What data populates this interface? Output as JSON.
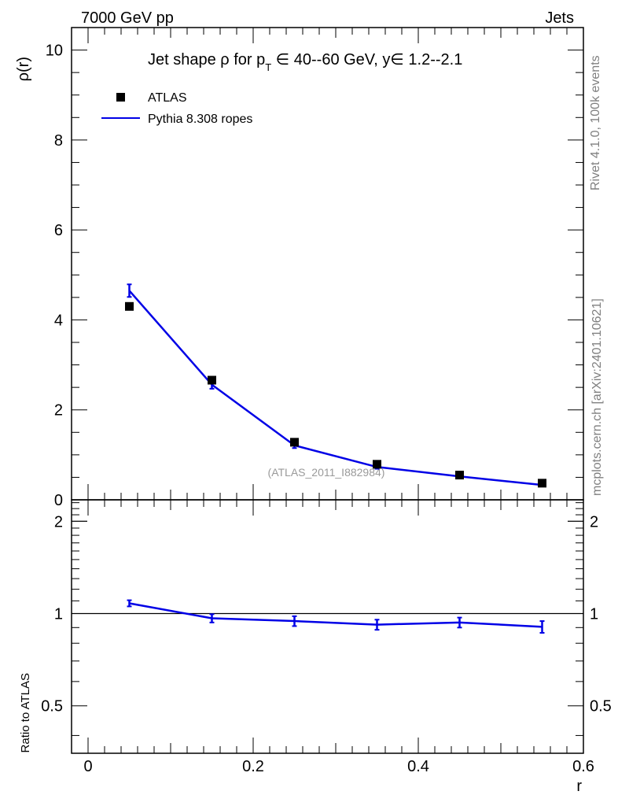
{
  "header": {
    "energy_label": "7000 GeV pp",
    "category_label": "Jets"
  },
  "side_labels": {
    "rivet_info": "Rivet 4.1.0,  100k events",
    "mcplots_info": "mcplots.cern.ch [arXiv:2401.10621]"
  },
  "watermark": "(ATLAS_2011_I882984)",
  "chart_data": [
    {
      "type": "scatter",
      "panel": "main",
      "title_parts": {
        "prefix": "Jet shape ",
        "rho": "ρ",
        "for": " for p",
        "sub": "T",
        "in1": " ∈ 40--60 GeV, y",
        "in2": "∈ 1.2--2.1"
      },
      "ylabel": "ρ(r)",
      "xlabel": "",
      "xlim": [
        -0.02,
        0.6
      ],
      "ylim": [
        0,
        10.5
      ],
      "yticks": [
        0,
        2,
        4,
        6,
        8,
        10
      ],
      "ytick_labels": [
        "0",
        "2",
        "4",
        "6",
        "8",
        "10"
      ],
      "legend_position": "top-left",
      "legend": {
        "data_label": "ATLAS",
        "mc_label": "Pythia 8.308 ropes"
      },
      "series": [
        {
          "name": "ATLAS",
          "kind": "markers",
          "color": "#000000",
          "x": [
            0.05,
            0.15,
            0.25,
            0.35,
            0.45,
            0.55
          ],
          "values": [
            4.3,
            2.66,
            1.28,
            0.79,
            0.55,
            0.37
          ]
        },
        {
          "name": "Pythia 8.308 ropes",
          "kind": "line",
          "color": "#0000e6",
          "x": [
            0.05,
            0.15,
            0.25,
            0.35,
            0.45,
            0.55
          ],
          "values": [
            4.65,
            2.56,
            1.21,
            0.73,
            0.52,
            0.33
          ],
          "errors": [
            0.14,
            0.09,
            0.06,
            0.04,
            0.03,
            0.02
          ]
        }
      ]
    },
    {
      "type": "line",
      "panel": "ratio",
      "ylabel": "Ratio to ATLAS",
      "xlabel": "r",
      "xlim": [
        -0.02,
        0.6
      ],
      "ylim": [
        0.35,
        2.35
      ],
      "yscale": "log",
      "yticks": [
        0.5,
        1,
        2
      ],
      "ytick_labels": [
        "0.5",
        "1",
        "2"
      ],
      "xticks": [
        0,
        0.2,
        0.4,
        0.6
      ],
      "xtick_labels": [
        "0",
        "0.2",
        "0.4",
        "0.6"
      ],
      "reference_line": 1,
      "series": [
        {
          "name": "Pythia 8.308 ropes / ATLAS",
          "color": "#0000e6",
          "x": [
            0.05,
            0.15,
            0.25,
            0.35,
            0.45,
            0.55
          ],
          "values": [
            1.08,
            0.965,
            0.945,
            0.92,
            0.935,
            0.905
          ],
          "errors": [
            0.025,
            0.03,
            0.035,
            0.035,
            0.035,
            0.04
          ]
        }
      ]
    }
  ]
}
